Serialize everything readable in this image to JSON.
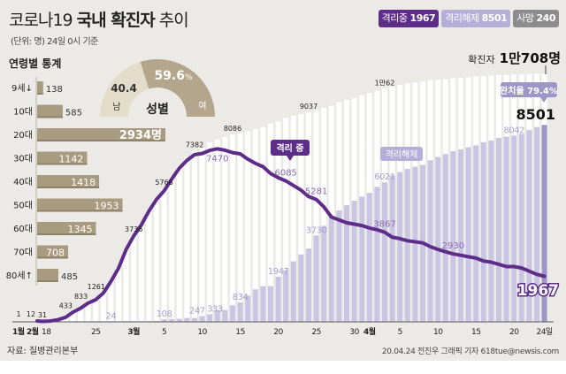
{
  "header": {
    "title_light": "코로나19",
    "title_bold": "국내 확진자",
    "title_tail": "추이",
    "subtitle": "(단위: 명) 24일 0시 기준"
  },
  "legend": [
    {
      "label": "격리중",
      "value": "1967",
      "color": "#5e2d8a"
    },
    {
      "label": "격리해제",
      "value": "8501",
      "color": "#b4aed8"
    },
    {
      "label": "사망",
      "value": "240",
      "color": "#8c8c8c"
    }
  ],
  "colors": {
    "background": "#ebeae6",
    "age_bar": "#a99b80",
    "isolating_line": "#5e2d8a",
    "released_bar": "#c9c5e2",
    "released_bar_latest": "#9d97c9",
    "cumulative_bar": "#ffffff",
    "gender_male": "#e3dcc8",
    "gender_female": "#b3a68c"
  },
  "age_panel": {
    "title": "연령별 통계",
    "groups": [
      {
        "label": "9세↓",
        "value": 138,
        "text": "138"
      },
      {
        "label": "10대",
        "value": 585,
        "text": "585"
      },
      {
        "label": "20대",
        "value": 2934,
        "text": "2934명"
      },
      {
        "label": "30대",
        "value": 1142,
        "text": "1142"
      },
      {
        "label": "40대",
        "value": 1418,
        "text": "1418"
      },
      {
        "label": "50대",
        "value": 1953,
        "text": "1953"
      },
      {
        "label": "60대",
        "value": 1345,
        "text": "1345"
      },
      {
        "label": "70대",
        "value": 708,
        "text": "708"
      },
      {
        "label": "80세↑",
        "value": 485,
        "text": "485"
      }
    ]
  },
  "gender": {
    "title": "성별",
    "male_label": "남",
    "male_value": "40.4",
    "female_label": "여",
    "female_value": "59.6",
    "female_unit": "%",
    "male_pct": 40.4,
    "female_pct": 59.6
  },
  "chart_data": {
    "type": "bar+line",
    "x": [
      "02-18",
      "02-19",
      "02-20",
      "02-21",
      "02-22",
      "02-23",
      "02-24",
      "02-25",
      "02-26",
      "02-27",
      "02-28",
      "02-29",
      "03-01",
      "03-02",
      "03-03",
      "03-04",
      "03-05",
      "03-06",
      "03-07",
      "03-08",
      "03-09",
      "03-10",
      "03-11",
      "03-12",
      "03-13",
      "03-14",
      "03-15",
      "03-16",
      "03-17",
      "03-18",
      "03-19",
      "03-20",
      "03-21",
      "03-22",
      "03-23",
      "03-24",
      "03-25",
      "03-26",
      "03-27",
      "03-28",
      "03-29",
      "03-30",
      "03-31",
      "04-01",
      "04-02",
      "04-03",
      "04-04",
      "04-05",
      "04-06",
      "04-07",
      "04-08",
      "04-09",
      "04-10",
      "04-11",
      "04-12",
      "04-13",
      "04-14",
      "04-15",
      "04-16",
      "04-17",
      "04-18",
      "04-19",
      "04-20",
      "04-21",
      "04-22",
      "04-23",
      "04-24"
    ],
    "series": [
      {
        "name": "확진자",
        "kind": "bar",
        "values": [
          31,
          51,
          104,
          204,
          433,
          602,
          833,
          977,
          1261,
          1766,
          2337,
          3150,
          3736,
          4212,
          4812,
          5328,
          5766,
          6284,
          6767,
          7134,
          7382,
          7513,
          7755,
          7869,
          7979,
          8086,
          8162,
          8236,
          8320,
          8413,
          8565,
          8652,
          8799,
          8897,
          8961,
          9037,
          9137,
          9241,
          9332,
          9478,
          9583,
          9661,
          9786,
          9887,
          9976,
          10062,
          10156,
          10237,
          10284,
          10331,
          10384,
          10423,
          10450,
          10480,
          10512,
          10537,
          10564,
          10591,
          10613,
          10635,
          10653,
          10661,
          10674,
          10683,
          10694,
          10702,
          10708
        ]
      },
      {
        "name": "격리해제",
        "kind": "bar",
        "values": [
          12,
          16,
          16,
          16,
          16,
          18,
          22,
          22,
          22,
          24,
          24,
          27,
          30,
          30,
          30,
          41,
          108,
          118,
          130,
          166,
          166,
          247,
          333,
          510,
          510,
          714,
          834,
          1137,
          1401,
          1540,
          1540,
          1947,
          2233,
          2612,
          2909,
          3166,
          3730,
          4144,
          4528,
          4811,
          5033,
          5228,
          5408,
          5567,
          5828,
          6021,
          6325,
          6463,
          6598,
          6694,
          6776,
          6973,
          7117,
          7243,
          7368,
          7447,
          7534,
          7616,
          7757,
          7829,
          7937,
          7995,
          8042,
          8114,
          8277,
          8411,
          8501
        ]
      },
      {
        "name": "격리 중",
        "kind": "line",
        "values": [
          19,
          35,
          88,
          188,
          417,
          584,
          811,
          955,
          1239,
          1742,
          2313,
          3123,
          3706,
          4182,
          4782,
          5287,
          5658,
          6166,
          6637,
          6968,
          7216,
          7266,
          7402,
          7470,
          7407,
          7307,
          7253,
          7024,
          6838,
          6700,
          6400,
          6220,
          6085,
          5884,
          5684,
          5410,
          5281,
          4966,
          4523,
          4398,
          4275,
          4216,
          4155,
          4050,
          3979,
          3867,
          3654,
          3591,
          3500,
          3455,
          3408,
          3246,
          3125,
          3026,
          2930,
          2873,
          2808,
          2750,
          2627,
          2576,
          2484,
          2385,
          2386,
          2324,
          2187,
          2051,
          1967
        ]
      }
    ],
    "pre_period_labels": [
      {
        "date": "1월",
        "value": "1"
      },
      {
        "date": "2월",
        "value": "12"
      }
    ],
    "cumulative_labels": [
      {
        "date": "02-18",
        "text": "31"
      },
      {
        "date": "02-22",
        "text": "433"
      },
      {
        "date": "02-24",
        "text": "833"
      },
      {
        "date": "02-26",
        "text": "1261"
      },
      {
        "date": "03-01",
        "text": "3736"
      },
      {
        "date": "03-05",
        "text": "5766"
      },
      {
        "date": "03-09",
        "text": "7382"
      },
      {
        "date": "03-14",
        "text": "8086"
      },
      {
        "date": "03-24",
        "text": "9037"
      },
      {
        "date": "04-03",
        "text": "1만62"
      }
    ],
    "released_labels": [
      {
        "date": "02-27",
        "text": "24"
      },
      {
        "date": "03-05",
        "text": "108"
      },
      {
        "date": "03-10",
        "text": "247"
      },
      {
        "date": "03-11",
        "text": "333"
      },
      {
        "date": "03-15",
        "text": "834"
      },
      {
        "date": "03-20",
        "text": "1947"
      },
      {
        "date": "03-25",
        "text": "3730"
      },
      {
        "date": "04-03",
        "text": "6021"
      },
      {
        "date": "04-20",
        "text": "8042"
      }
    ],
    "isolating_labels": [
      {
        "date": "03-12",
        "text": "7470"
      },
      {
        "date": "03-21",
        "text": "6085"
      },
      {
        "date": "03-25",
        "text": "5281"
      },
      {
        "date": "04-03",
        "text": "3867"
      },
      {
        "date": "04-12",
        "text": "2930"
      }
    ],
    "x_ticks": [
      {
        "date": "1월",
        "text": "1월",
        "bold": true
      },
      {
        "date": "2월",
        "text": "2월",
        "bold": true
      },
      {
        "date": "02-18",
        "text": "18"
      },
      {
        "date": "02-25",
        "text": "25"
      },
      {
        "date": "03-01",
        "text": "3월",
        "bold": true
      },
      {
        "date": "03-05",
        "text": "5"
      },
      {
        "date": "03-10",
        "text": "10"
      },
      {
        "date": "03-15",
        "text": "15"
      },
      {
        "date": "03-20",
        "text": "20"
      },
      {
        "date": "03-25",
        "text": "25"
      },
      {
        "date": "03-30",
        "text": "30"
      },
      {
        "date": "04-01",
        "text": "4월",
        "bold": true
      },
      {
        "date": "04-05",
        "text": "5"
      },
      {
        "date": "04-10",
        "text": "10"
      },
      {
        "date": "04-15",
        "text": "15"
      },
      {
        "date": "04-20",
        "text": "20"
      },
      {
        "date": "04-24",
        "text": "24일"
      }
    ],
    "tags": {
      "isolating": "격리 중",
      "released": "격리해제",
      "recovery_rate": "완치율 79.4%",
      "latest_released": "8501",
      "latest_isolating": "1967",
      "total_label": "확진자",
      "total_value": "1만708명"
    }
  },
  "footer": {
    "source": "자료: 질병관리본부",
    "credit": "20.04.24 전진우 그래픽 기자 618tue@newsis.com",
    "watermark": "NEWSIS"
  }
}
